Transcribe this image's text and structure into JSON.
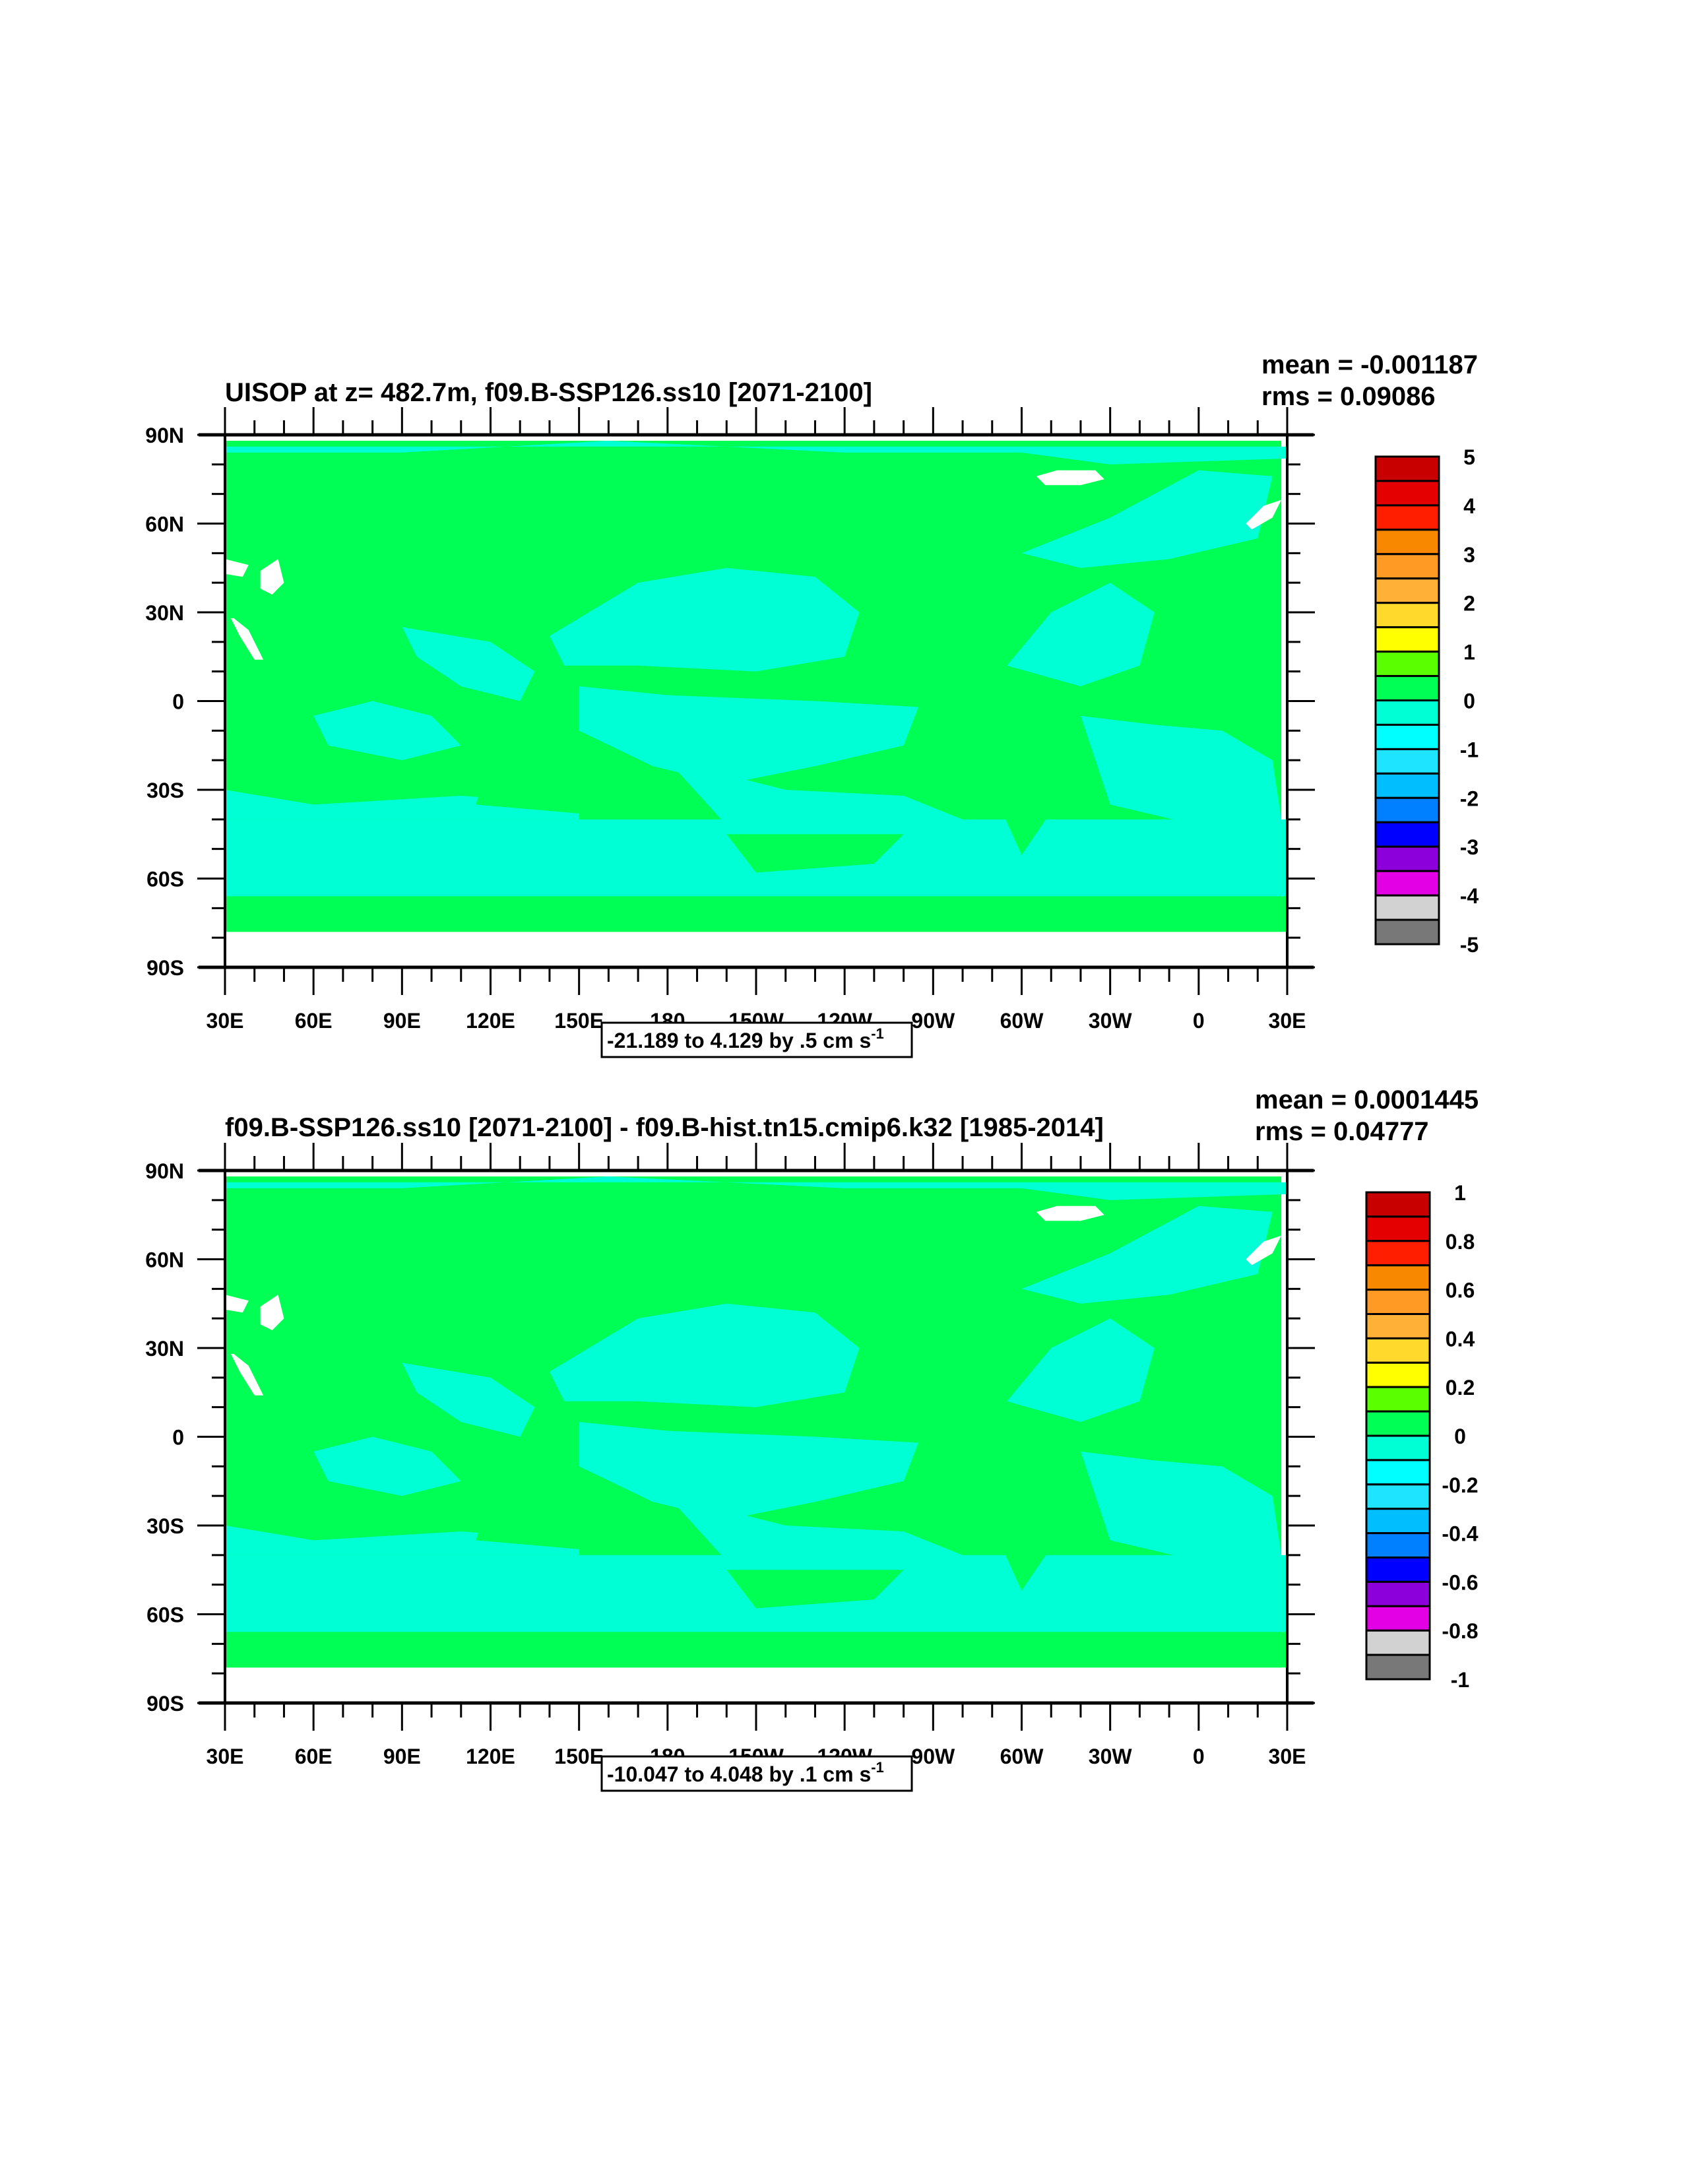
{
  "chart_data": [
    {
      "type": "heatmap",
      "title": "UISOP at z= 482.7m, f09.B-SSP126.ss10 [2071-2100]",
      "mean_label": "mean = -0.001187",
      "rms_label": "rms = 0.09086",
      "range_label": "-21.189 to 4.129 by .5 cm s",
      "range_unit_sup": "-1",
      "xticks": [
        "30E",
        "60E",
        "90E",
        "120E",
        "150E",
        "180",
        "150W",
        "120W",
        "90W",
        "60W",
        "30W",
        "0",
        "30E"
      ],
      "yticks": [
        "90N",
        "60N",
        "30N",
        "0",
        "30S",
        "60S",
        "90S"
      ],
      "xlim": [
        30,
        390
      ],
      "ylim": [
        -90,
        90
      ],
      "colorbar_labels": [
        "5",
        "4",
        "3",
        "2",
        "1",
        "0",
        "-1",
        "-2",
        "-3",
        "-4",
        "-5"
      ],
      "colorbar_range": [
        -5,
        5
      ],
      "dominant_values": {
        "land_and_ocean": "0 to 0.5",
        "ocean_patches": "-0.5 to 0"
      }
    },
    {
      "type": "heatmap",
      "title": "f09.B-SSP126.ss10 [2071-2100] - f09.B-hist.tn15.cmip6.k32 [1985-2014]",
      "mean_label": "mean = 0.0001445",
      "rms_label": "rms = 0.04777",
      "range_label": "-10.047 to 4.048 by .1 cm s",
      "range_unit_sup": "-1",
      "xticks": [
        "30E",
        "60E",
        "90E",
        "120E",
        "150E",
        "180",
        "150W",
        "120W",
        "90W",
        "60W",
        "30W",
        "0",
        "30E"
      ],
      "yticks": [
        "90N",
        "60N",
        "30N",
        "0",
        "30S",
        "60S",
        "90S"
      ],
      "xlim": [
        30,
        390
      ],
      "ylim": [
        -90,
        90
      ],
      "colorbar_labels": [
        "1",
        "0.8",
        "0.6",
        "0.4",
        "0.2",
        "0",
        "-0.2",
        "-0.4",
        "-0.6",
        "-0.8",
        "-1"
      ],
      "colorbar_range": [
        -1,
        1
      ],
      "dominant_values": {
        "land_and_ocean": "0 to 0.1",
        "ocean_patches": "-0.1 to 0"
      }
    }
  ],
  "colormap": [
    "#c80000",
    "#e40000",
    "#ff1e00",
    "#f78800",
    "#ff9a25",
    "#ffb037",
    "#ffd92b",
    "#ffff00",
    "#5aff00",
    "#00ff55",
    "#00ffd5",
    "#00ffff",
    "#1ee4ff",
    "#00beff",
    "#0080ff",
    "#0000ff",
    "#8c00dc",
    "#e400e4",
    "#d2d2d2",
    "#787878"
  ]
}
